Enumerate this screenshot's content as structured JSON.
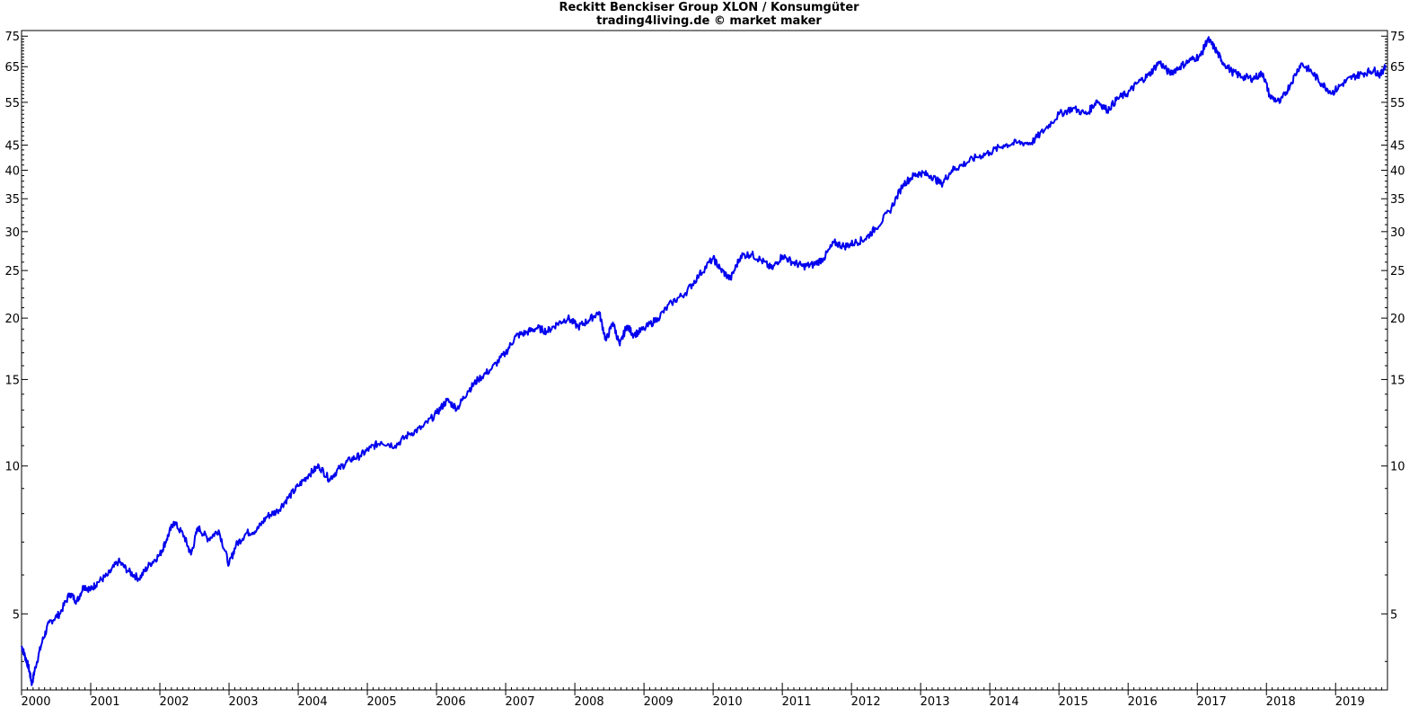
{
  "chart_data": {
    "type": "line",
    "title": "Reckitt Benckiser Group XLON / Konsumgüter",
    "subtitle": "trading4living.de © market maker",
    "xlabel": "",
    "ylabel": "",
    "y_scale": "log",
    "ylim": [
      3.5,
      77
    ],
    "xlim": [
      2000.0,
      2019.75
    ],
    "y_ticks": [
      5,
      10,
      15,
      20,
      25,
      30,
      35,
      40,
      45,
      55,
      65,
      75
    ],
    "x_ticks": [
      2000,
      2001,
      2002,
      2003,
      2004,
      2005,
      2006,
      2007,
      2008,
      2009,
      2010,
      2011,
      2012,
      2013,
      2014,
      2015,
      2016,
      2017,
      2018,
      2019
    ],
    "grid": false,
    "line_color": "#0000ee",
    "series": [
      {
        "x": [
          2000.0,
          2000.05,
          2000.1,
          2000.15,
          2000.2,
          2000.3,
          2000.4,
          2000.55,
          2000.7,
          2000.8,
          2000.9,
          2001.0,
          2001.1,
          2001.25,
          2001.4,
          2001.55,
          2001.7,
          2001.85,
          2002.0,
          2002.1,
          2002.2,
          2002.35,
          2002.45,
          2002.55,
          2002.7,
          2002.85,
          2003.0,
          2003.1,
          2003.25,
          2003.4,
          2003.55,
          2003.7,
          2003.85,
          2004.0,
          2004.15,
          2004.3,
          2004.45,
          2004.6,
          2004.75,
          2004.9,
          2005.05,
          2005.2,
          2005.4,
          2005.6,
          2005.8,
          2006.0,
          2006.15,
          2006.3,
          2006.45,
          2006.6,
          2006.8,
          2007.0,
          2007.15,
          2007.3,
          2007.45,
          2007.6,
          2007.75,
          2007.9,
          2008.05,
          2008.2,
          2008.35,
          2008.45,
          2008.55,
          2008.65,
          2008.75,
          2008.85,
          2009.0,
          2009.2,
          2009.4,
          2009.6,
          2009.8,
          2010.0,
          2010.1,
          2010.25,
          2010.4,
          2010.55,
          2010.7,
          2010.85,
          2011.0,
          2011.15,
          2011.3,
          2011.45,
          2011.6,
          2011.75,
          2011.9,
          2012.05,
          2012.2,
          2012.35,
          2012.55,
          2012.75,
          2012.9,
          2013.0,
          2013.15,
          2013.3,
          2013.45,
          2013.6,
          2013.8,
          2014.0,
          2014.2,
          2014.4,
          2014.6,
          2014.8,
          2015.0,
          2015.2,
          2015.4,
          2015.55,
          2015.7,
          2015.85,
          2016.0,
          2016.15,
          2016.3,
          2016.45,
          2016.6,
          2016.75,
          2016.9,
          2017.05,
          2017.15,
          2017.25,
          2017.35,
          2017.5,
          2017.65,
          2017.8,
          2017.95,
          2018.05,
          2018.2,
          2018.35,
          2018.5,
          2018.65,
          2018.8,
          2018.95,
          2019.1,
          2019.25,
          2019.4,
          2019.55,
          2019.65,
          2019.72
        ],
        "y": [
          4.3,
          4.1,
          3.9,
          3.6,
          3.9,
          4.4,
          4.8,
          5.0,
          5.5,
          5.3,
          5.7,
          5.6,
          5.8,
          6.0,
          6.4,
          6.1,
          5.9,
          6.3,
          6.6,
          7.1,
          7.7,
          7.2,
          6.6,
          7.5,
          7.1,
          7.4,
          6.3,
          6.9,
          7.3,
          7.4,
          7.9,
          8.1,
          8.6,
          9.1,
          9.6,
          10.0,
          9.4,
          9.9,
          10.3,
          10.5,
          10.9,
          11.2,
          11.0,
          11.6,
          12.0,
          12.8,
          13.6,
          13.1,
          14.2,
          15.0,
          15.8,
          17.0,
          18.4,
          18.7,
          19.1,
          18.8,
          19.5,
          20.0,
          19.2,
          19.8,
          20.6,
          18.0,
          19.6,
          17.6,
          19.3,
          18.5,
          19.0,
          20.0,
          21.5,
          22.5,
          24.5,
          26.5,
          25.2,
          24.0,
          26.8,
          27.0,
          26.2,
          25.2,
          26.8,
          26.0,
          25.5,
          25.7,
          26.5,
          28.5,
          28.0,
          28.5,
          29.0,
          30.5,
          33.0,
          37.5,
          39.0,
          39.5,
          39.0,
          37.5,
          40.0,
          41.0,
          42.5,
          43.5,
          45.0,
          45.5,
          45.5,
          48.5,
          52.0,
          53.5,
          52.0,
          55.5,
          53.0,
          56.0,
          57.5,
          60.5,
          62.5,
          66.5,
          63.0,
          65.0,
          67.0,
          68.5,
          74.0,
          71.0,
          67.0,
          63.5,
          62.0,
          61.5,
          63.0,
          56.5,
          55.0,
          60.0,
          66.0,
          63.5,
          60.0,
          57.5,
          60.0,
          62.0,
          63.0,
          64.0,
          62.5,
          65.5
        ]
      }
    ]
  }
}
